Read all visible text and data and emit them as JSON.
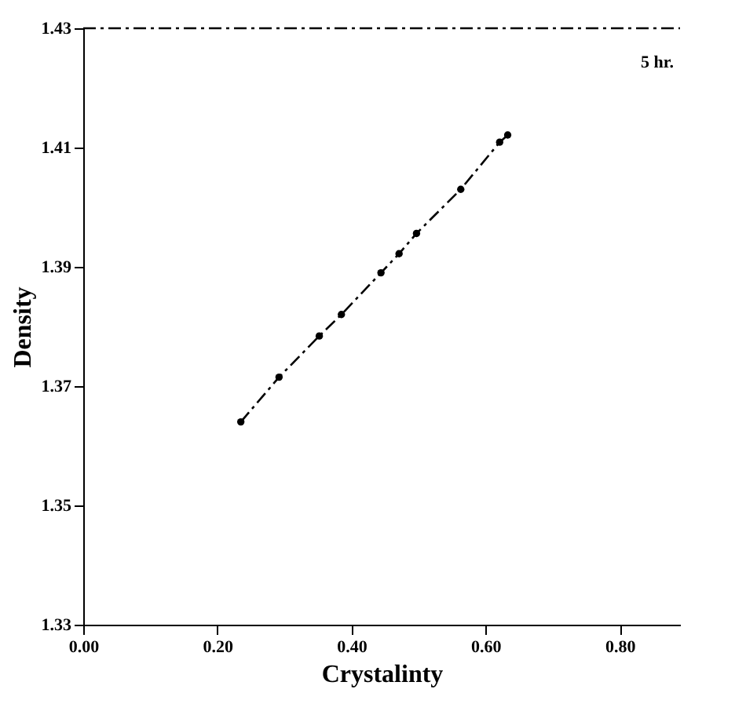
{
  "chart_data": {
    "type": "line",
    "xlabel": "Crystalinty",
    "ylabel": "Density",
    "x": [
      0.235,
      0.292,
      0.352,
      0.385,
      0.444,
      0.471,
      0.497,
      0.563,
      0.621,
      0.633
    ],
    "series": [
      {
        "color": "#000000",
        "values": [
          1.364,
          1.3715,
          1.3784,
          1.382,
          1.389,
          1.3922,
          1.3956,
          1.403,
          1.4109,
          1.4121
        ]
      }
    ],
    "marker": "circle",
    "line_style": "dashed",
    "xlim": [
      0,
      0.89
    ],
    "ylim": [
      1.33,
      1.43
    ],
    "xticks": [
      {
        "value": 0.0,
        "label": "0.00"
      },
      {
        "value": 0.2,
        "label": "0.20"
      },
      {
        "value": 0.4,
        "label": "0.40"
      },
      {
        "value": 0.6,
        "label": "0.60"
      },
      {
        "value": 0.8,
        "label": "0.80"
      }
    ],
    "yticks": [
      1.33,
      1.35,
      1.37,
      1.39,
      1.41,
      1.43
    ],
    "ref_lines": [
      {
        "axis": "y",
        "value": 1.43,
        "line_style": "dashed",
        "color": "#000000"
      }
    ],
    "annotations": [
      "5 hr."
    ],
    "grid": false
  }
}
